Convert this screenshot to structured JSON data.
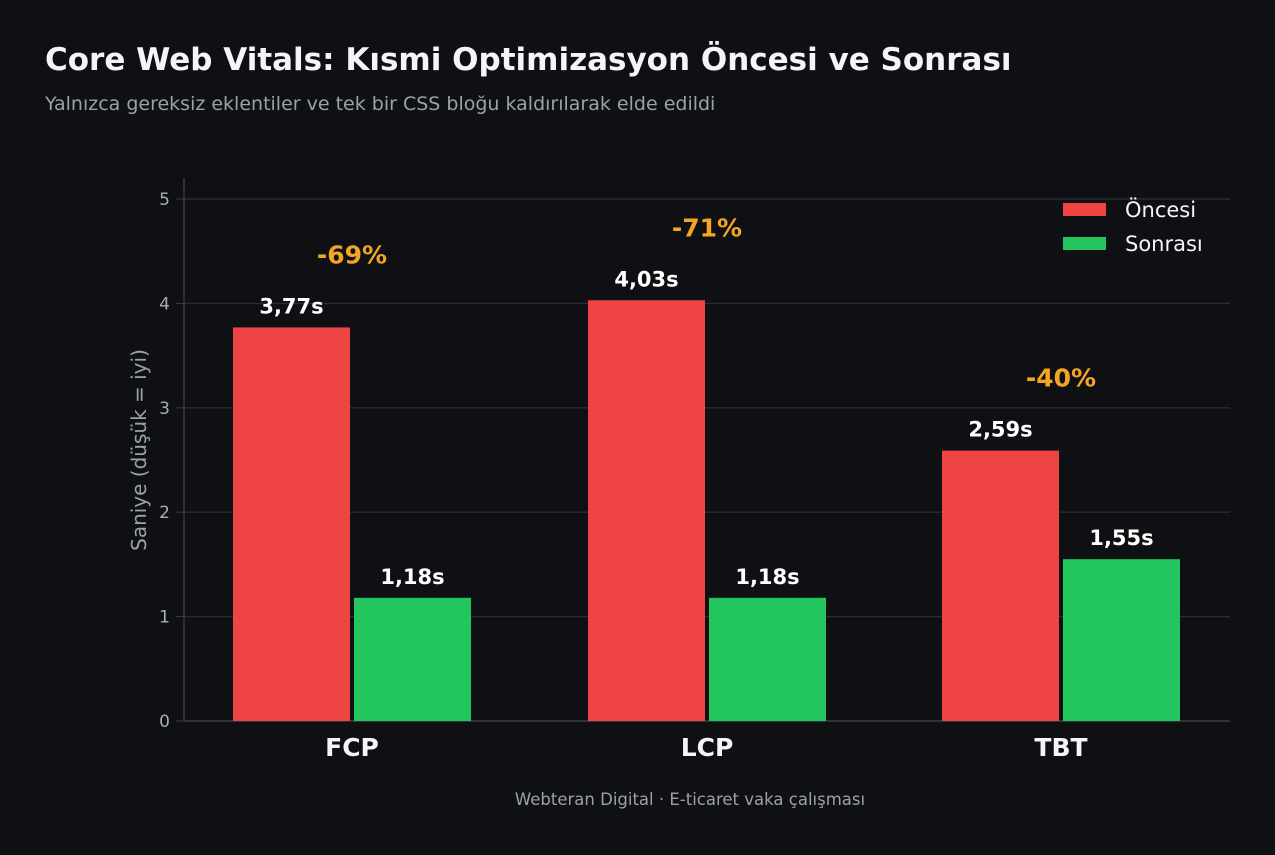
{
  "header": {
    "title": "Core Web Vitals: Kısmi Optimizasyon Öncesi ve Sonrası",
    "subtitle": "Yalnızca gereksiz eklentiler ve tek bir CSS bloğu kaldırılarak elde edildi"
  },
  "footer": {
    "text": "Webteran Digital  ·  E-ticaret vaka çalışması"
  },
  "chart_data": {
    "type": "bar",
    "categories": [
      "FCP",
      "LCP",
      "TBT"
    ],
    "series": [
      {
        "name": "Öncesi",
        "values": [
          3.77,
          4.03,
          2.59
        ],
        "color": "#ef4444",
        "labels": [
          "3,77s",
          "4,03s",
          "2,59s"
        ]
      },
      {
        "name": "Sonrası",
        "values": [
          1.18,
          1.18,
          1.55
        ],
        "color": "#22c55e",
        "labels": [
          "1,18s",
          "1,18s",
          "1,55s"
        ]
      }
    ],
    "annotations": [
      "-69%",
      "-71%",
      "-40%"
    ],
    "annotation_color": "#f5a524",
    "ylabel": "Saniye (düşük = iyi)",
    "xlabel": "",
    "ylim": [
      0,
      5.2
    ],
    "yticks": [
      0,
      1,
      2,
      3,
      4,
      5
    ],
    "grid": true,
    "legend_position": "top-right"
  }
}
